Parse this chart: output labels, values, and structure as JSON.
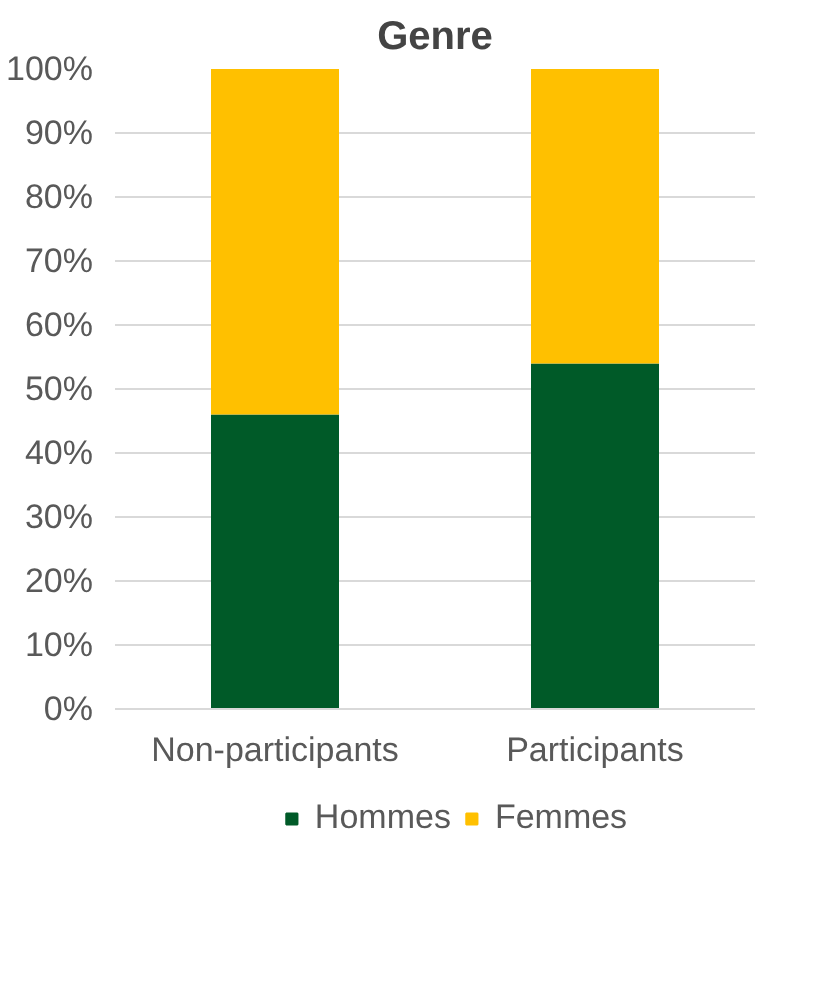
{
  "chart_data": {
    "type": "bar",
    "title": "Genre",
    "stacked": true,
    "categories": [
      "Non-participants",
      "Participants"
    ],
    "series": [
      {
        "name": "Hommes",
        "color": "#005a28",
        "values": [
          46,
          54
        ]
      },
      {
        "name": "Femmes",
        "color": "#ffc000",
        "values": [
          54,
          46
        ]
      }
    ],
    "ylim": [
      0,
      100
    ],
    "yticks": [
      {
        "value": 0,
        "label": "0%"
      },
      {
        "value": 10,
        "label": "10%"
      },
      {
        "value": 20,
        "label": "20%"
      },
      {
        "value": 30,
        "label": "30%"
      },
      {
        "value": 40,
        "label": "40%"
      },
      {
        "value": 50,
        "label": "50%"
      },
      {
        "value": 60,
        "label": "60%"
      },
      {
        "value": 70,
        "label": "70%"
      },
      {
        "value": 80,
        "label": "80%"
      },
      {
        "value": 90,
        "label": "90%"
      },
      {
        "value": 100,
        "label": "100%"
      }
    ],
    "grid": "y",
    "legend": "bottom"
  }
}
